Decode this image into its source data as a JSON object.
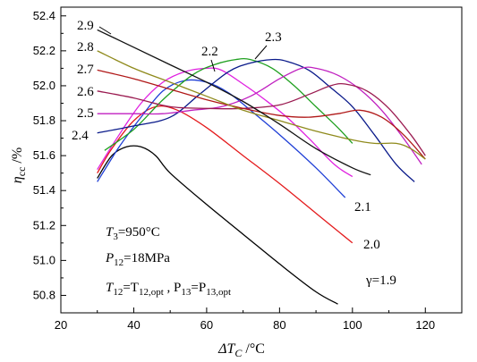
{
  "chart_data": {
    "type": "line",
    "xlabel_parts": [
      "ΔT",
      "C",
      " /°C"
    ],
    "ylabel_parts": [
      "η",
      "cc",
      " /%"
    ],
    "xlim": [
      20,
      130
    ],
    "ylim": [
      50.7,
      52.45
    ],
    "xticks": [
      20,
      40,
      60,
      80,
      100,
      120
    ],
    "yticks": [
      50.8,
      51.0,
      51.2,
      51.4,
      51.6,
      51.8,
      52.0,
      52.2,
      52.4
    ],
    "grid": false,
    "annotations": {
      "t3": [
        "T",
        "3",
        "=950°C"
      ],
      "p12": [
        "P",
        "12",
        "=18MPa"
      ],
      "cond": [
        "T",
        "12",
        "=T",
        "12,opt",
        " , P",
        "13",
        "=P",
        "13,opt"
      ]
    },
    "series": [
      {
        "name": "γ=1.9",
        "color": "#000000",
        "points": [
          [
            30,
            51.47
          ],
          [
            34,
            51.6
          ],
          [
            38,
            51.65
          ],
          [
            42,
            51.65
          ],
          [
            46,
            51.6
          ],
          [
            50,
            51.5
          ],
          [
            60,
            51.32
          ],
          [
            70,
            51.15
          ],
          [
            80,
            50.98
          ],
          [
            90,
            50.82
          ],
          [
            96,
            50.75
          ]
        ]
      },
      {
        "name": "2.0",
        "color": "#e41a1c",
        "points": [
          [
            30,
            51.5
          ],
          [
            34,
            51.64
          ],
          [
            40,
            51.8
          ],
          [
            46,
            51.88
          ],
          [
            52,
            51.86
          ],
          [
            60,
            51.76
          ],
          [
            70,
            51.6
          ],
          [
            80,
            51.44
          ],
          [
            90,
            51.27
          ],
          [
            100,
            51.1
          ]
        ]
      },
      {
        "name": "2.1",
        "color": "#1f3fd6",
        "points": [
          [
            30,
            51.45
          ],
          [
            36,
            51.65
          ],
          [
            42,
            51.82
          ],
          [
            48,
            51.97
          ],
          [
            54,
            52.03
          ],
          [
            60,
            52.02
          ],
          [
            66,
            51.96
          ],
          [
            72,
            51.86
          ],
          [
            80,
            51.72
          ],
          [
            90,
            51.53
          ],
          [
            98,
            51.36
          ]
        ]
      },
      {
        "name": "2.2",
        "color": "#e020e0",
        "points": [
          [
            30,
            51.52
          ],
          [
            36,
            51.72
          ],
          [
            42,
            51.9
          ],
          [
            48,
            52.02
          ],
          [
            54,
            52.08
          ],
          [
            60,
            52.1
          ],
          [
            64,
            52.09
          ],
          [
            70,
            52.01
          ],
          [
            76,
            51.92
          ],
          [
            82,
            51.82
          ],
          [
            88,
            51.7
          ],
          [
            95,
            51.55
          ],
          [
            100,
            51.48
          ]
        ]
      },
      {
        "name": "2.3",
        "color": "#20a020",
        "points": [
          [
            32,
            51.63
          ],
          [
            40,
            51.75
          ],
          [
            48,
            51.92
          ],
          [
            56,
            52.06
          ],
          [
            62,
            52.12
          ],
          [
            68,
            52.15
          ],
          [
            72,
            52.15
          ],
          [
            78,
            52.1
          ],
          [
            84,
            52.0
          ],
          [
            90,
            51.88
          ],
          [
            96,
            51.76
          ],
          [
            100,
            51.67
          ]
        ]
      },
      {
        "name": "2.4",
        "color": "#0a1a8a",
        "points": [
          [
            30,
            51.73
          ],
          [
            40,
            51.77
          ],
          [
            50,
            51.82
          ],
          [
            58,
            51.95
          ],
          [
            66,
            52.08
          ],
          [
            72,
            52.13
          ],
          [
            78,
            52.15
          ],
          [
            82,
            52.14
          ],
          [
            88,
            52.09
          ],
          [
            94,
            51.99
          ],
          [
            100,
            51.88
          ],
          [
            106,
            51.72
          ],
          [
            112,
            51.55
          ],
          [
            117,
            51.45
          ]
        ]
      },
      {
        "name": "2.5",
        "color": "#c020c0",
        "points": [
          [
            30,
            51.84
          ],
          [
            40,
            51.84
          ],
          [
            48,
            51.84
          ],
          [
            56,
            51.86
          ],
          [
            64,
            51.88
          ],
          [
            72,
            51.94
          ],
          [
            80,
            52.04
          ],
          [
            86,
            52.1
          ],
          [
            90,
            52.1
          ],
          [
            96,
            52.06
          ],
          [
            102,
            51.98
          ],
          [
            108,
            51.86
          ],
          [
            114,
            51.7
          ],
          [
            119,
            51.55
          ]
        ]
      },
      {
        "name": "2.6",
        "color": "#9a1a50",
        "points": [
          [
            30,
            51.97
          ],
          [
            40,
            51.93
          ],
          [
            50,
            51.88
          ],
          [
            60,
            51.87
          ],
          [
            70,
            51.87
          ],
          [
            80,
            51.89
          ],
          [
            88,
            51.95
          ],
          [
            94,
            52.0
          ],
          [
            98,
            52.01
          ],
          [
            104,
            51.97
          ],
          [
            110,
            51.87
          ],
          [
            116,
            51.72
          ],
          [
            120,
            51.6
          ]
        ]
      },
      {
        "name": "2.7",
        "color": "#b01818",
        "points": [
          [
            30,
            52.09
          ],
          [
            40,
            52.04
          ],
          [
            50,
            51.98
          ],
          [
            60,
            51.92
          ],
          [
            70,
            51.87
          ],
          [
            80,
            51.83
          ],
          [
            88,
            51.82
          ],
          [
            96,
            51.84
          ],
          [
            102,
            51.86
          ],
          [
            108,
            51.82
          ],
          [
            114,
            51.72
          ],
          [
            120,
            51.58
          ]
        ]
      },
      {
        "name": "2.8",
        "color": "#8f8a1c",
        "points": [
          [
            30,
            52.2
          ],
          [
            40,
            52.1
          ],
          [
            50,
            52.02
          ],
          [
            60,
            51.94
          ],
          [
            70,
            51.86
          ],
          [
            80,
            51.8
          ],
          [
            90,
            51.74
          ],
          [
            100,
            51.69
          ],
          [
            106,
            51.67
          ],
          [
            112,
            51.67
          ],
          [
            116,
            51.64
          ],
          [
            120,
            51.58
          ]
        ]
      },
      {
        "name": "2.9",
        "color": "#111111",
        "points": [
          [
            30,
            52.32
          ],
          [
            40,
            52.22
          ],
          [
            50,
            52.12
          ],
          [
            60,
            52.02
          ],
          [
            70,
            51.91
          ],
          [
            80,
            51.78
          ],
          [
            90,
            51.64
          ],
          [
            100,
            51.53
          ],
          [
            105,
            51.49
          ]
        ]
      }
    ]
  }
}
